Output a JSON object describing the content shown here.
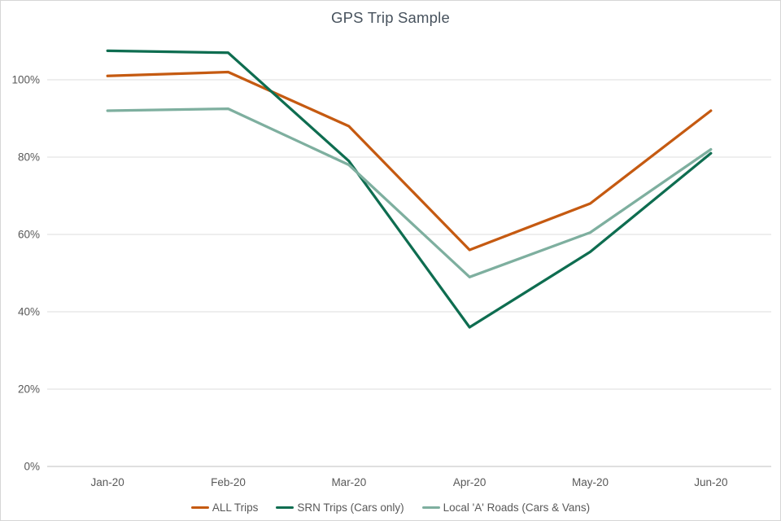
{
  "chart_data": {
    "type": "line",
    "title": "GPS Trip Sample",
    "xlabel": "",
    "ylabel": "",
    "categories": [
      "Jan-20",
      "Feb-20",
      "Mar-20",
      "Apr-20",
      "May-20",
      "Jun-20"
    ],
    "series": [
      {
        "name": "ALL Trips",
        "color": "#C55A11",
        "values": [
          101,
          102,
          88,
          56,
          68,
          92
        ]
      },
      {
        "name": "SRN Trips (Cars only)",
        "color": "#0E6D50",
        "values": [
          107.5,
          107,
          79,
          36,
          55.5,
          81
        ]
      },
      {
        "name": "Local 'A' Roads (Cars & Vans)",
        "color": "#7EAF9F",
        "values": [
          92,
          92.5,
          78,
          49,
          60.5,
          82
        ]
      }
    ],
    "y_axis": {
      "tick_labels": [
        "0%",
        "20%",
        "40%",
        "60%",
        "80%",
        "100%"
      ],
      "tick_values": [
        0,
        20,
        40,
        60,
        80,
        100
      ],
      "min": 0,
      "max": 115
    },
    "grid": true,
    "legend_position": "bottom"
  },
  "colors": {
    "gridline": "#DCDCDC",
    "axis_line": "#BFBFBF",
    "title_text": "#47525D",
    "axis_text": "#595959"
  }
}
